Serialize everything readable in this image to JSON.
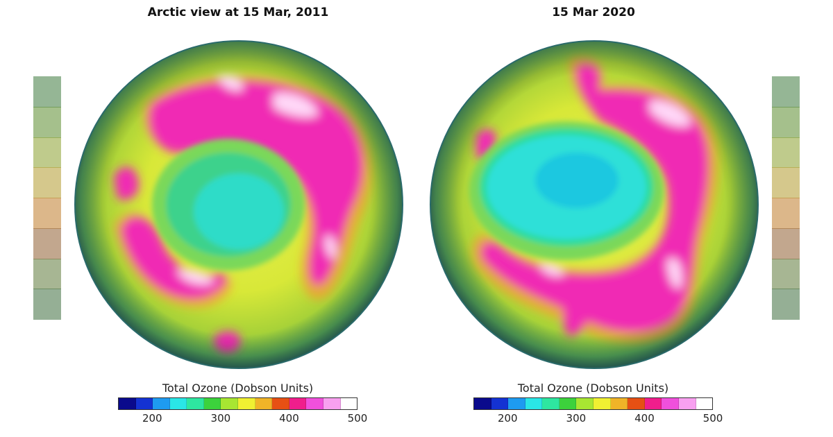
{
  "panels": [
    {
      "title": "Arctic view at 15 Mar, 2011",
      "legend_title": "Total Ozone  (Dobson Units)"
    },
    {
      "title": "15 Mar 2020",
      "legend_title": "Total Ozone  (Dobson Units)"
    }
  ],
  "colorbar": {
    "min": 150,
    "max": 500,
    "ticks": [
      "200",
      "300",
      "400",
      "500"
    ],
    "tick_values": [
      200,
      300,
      400,
      500
    ],
    "colors": [
      "#0a0a8c",
      "#1432d2",
      "#1e9bf0",
      "#2ae6e6",
      "#2ee6a0",
      "#3cd23c",
      "#a8e632",
      "#f0f032",
      "#f0b428",
      "#e65014",
      "#f01e8c",
      "#f050dc",
      "#f8a0f0",
      "#ffffff"
    ]
  },
  "side_colors": [
    "#3e7a3e",
    "#5b8c2e",
    "#8aa12e",
    "#b39a2e",
    "#c07c2a",
    "#8f5e32",
    "#5e7a3a",
    "#3e6e3e"
  ]
}
